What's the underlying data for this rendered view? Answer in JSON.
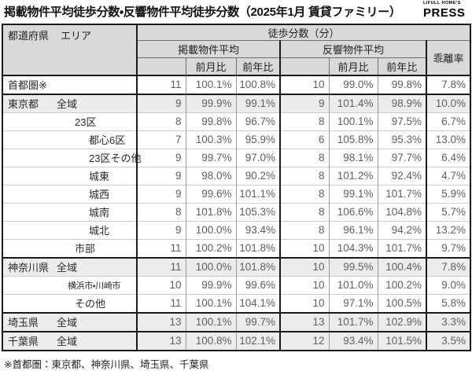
{
  "title": "掲載物件平均徒歩分数・反響物件平均徒歩分数（2025年1月 賃貸ファミリー）",
  "logo": {
    "top": "LIFULL HOME'S",
    "main": "PRESS",
    "color": "#e8570e"
  },
  "footnote": "※首都圏：東京都、神奈川県、埼玉県、千葉県",
  "colors": {
    "accent_orange": "#e8570e",
    "header_bg": "#d9d9d9",
    "shaded_row_bg": "#ececec",
    "thick_border": "#1a1a1a"
  },
  "headers": {
    "corner_pref": "都道府県",
    "corner_area": "エリア",
    "walk_minutes": "徒歩分数（分）",
    "listed_avg": "掲載物件平均",
    "response_avg": "反響物件平均",
    "mom": "前月比",
    "yoy": "前年比",
    "divergence": "乖離率"
  },
  "chart_data": {
    "type": "table",
    "title": "掲載物件平均徒歩分数・反響物件平均徒歩分数（2025年1月 賃貸ファミリー）",
    "columns": [
      "都道府県 エリア",
      "掲載物件平均",
      "掲載 前月比",
      "掲載 前年比",
      "反響物件平均",
      "反響 前月比",
      "反響 前年比",
      "乖離率"
    ],
    "rows": [
      {
        "pref": "首都圏※",
        "area": "",
        "level": 0,
        "shaded": false,
        "thick_top": true,
        "values": [
          "11",
          "100.1%",
          "100.8%",
          "10",
          "99.0%",
          "99.8%",
          "7.8%"
        ]
      },
      {
        "pref": "東京都",
        "area": "全域",
        "level": 1,
        "shaded": true,
        "thick_top": true,
        "values": [
          "9",
          "99.9%",
          "99.1%",
          "9",
          "101.4%",
          "98.9%",
          "10.0%"
        ]
      },
      {
        "pref": "",
        "area": "23区",
        "level": 2,
        "shaded": false,
        "thick_top": false,
        "values": [
          "8",
          "99.8%",
          "96.7%",
          "8",
          "100.1%",
          "97.5%",
          "6.7%"
        ]
      },
      {
        "pref": "",
        "area": "都心6区",
        "level": 3,
        "shaded": false,
        "thick_top": false,
        "values": [
          "7",
          "100.3%",
          "95.9%",
          "6",
          "105.8%",
          "95.3%",
          "13.0%"
        ]
      },
      {
        "pref": "",
        "area": "23区その他",
        "level": 3,
        "shaded": false,
        "thick_top": false,
        "values": [
          "9",
          "99.7%",
          "97.0%",
          "8",
          "98.1%",
          "97.7%",
          "6.4%"
        ]
      },
      {
        "pref": "",
        "area": "城東",
        "level": 3,
        "shaded": false,
        "thick_top": false,
        "values": [
          "9",
          "98.0%",
          "90.2%",
          "8",
          "101.2%",
          "92.4%",
          "4.7%"
        ]
      },
      {
        "pref": "",
        "area": "城西",
        "level": 3,
        "shaded": false,
        "thick_top": false,
        "values": [
          "9",
          "99.6%",
          "101.1%",
          "8",
          "99.1%",
          "101.7%",
          "5.9%"
        ]
      },
      {
        "pref": "",
        "area": "城南",
        "level": 3,
        "shaded": false,
        "thick_top": false,
        "values": [
          "8",
          "101.8%",
          "105.3%",
          "8",
          "106.6%",
          "104.8%",
          "5.7%"
        ]
      },
      {
        "pref": "",
        "area": "城北",
        "level": 3,
        "shaded": false,
        "thick_top": false,
        "values": [
          "9",
          "100.0%",
          "93.4%",
          "8",
          "96.1%",
          "94.2%",
          "13.2%"
        ]
      },
      {
        "pref": "",
        "area": "市部",
        "level": 2,
        "shaded": false,
        "thick_top": false,
        "values": [
          "11",
          "100.2%",
          "101.8%",
          "10",
          "104.3%",
          "101.7%",
          "9.7%"
        ]
      },
      {
        "pref": "神奈川県",
        "area": "全域",
        "level": 1,
        "shaded": true,
        "thick_top": true,
        "values": [
          "11",
          "100.0%",
          "101.8%",
          "10",
          "99.5%",
          "100.4%",
          "7.8%"
        ]
      },
      {
        "pref": "",
        "area": "横浜市・川崎市",
        "level": 2,
        "small": true,
        "shaded": false,
        "thick_top": false,
        "values": [
          "10",
          "99.9%",
          "99.6%",
          "10",
          "101.0%",
          "100.2%",
          "9.0%"
        ]
      },
      {
        "pref": "",
        "area": "その他",
        "level": 2,
        "shaded": false,
        "thick_top": false,
        "values": [
          "11",
          "100.1%",
          "104.1%",
          "10",
          "97.1%",
          "100.5%",
          "5.8%"
        ]
      },
      {
        "pref": "埼玉県",
        "area": "全域",
        "level": 1,
        "shaded": true,
        "thick_top": true,
        "values": [
          "13",
          "100.1%",
          "99.7%",
          "13",
          "101.7%",
          "102.9%",
          "3.3%"
        ]
      },
      {
        "pref": "千葉県",
        "area": "全域",
        "level": 1,
        "shaded": true,
        "thick_top": true,
        "values": [
          "13",
          "100.8%",
          "102.1%",
          "12",
          "93.4%",
          "101.5%",
          "3.5%"
        ]
      }
    ]
  }
}
